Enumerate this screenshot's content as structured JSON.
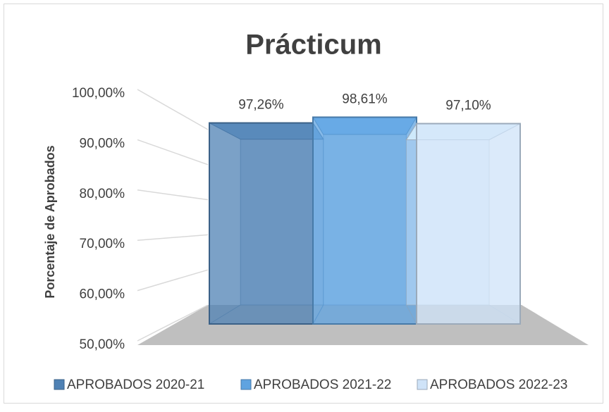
{
  "chart_data": {
    "type": "bar",
    "title": "Prácticum",
    "y_label": "Porcentaje de Aprobados",
    "ylim": [
      50,
      100
    ],
    "yticks": [
      {
        "value": 50,
        "label": "50,00%"
      },
      {
        "value": 60,
        "label": "60,00%"
      },
      {
        "value": 70,
        "label": "70,00%"
      },
      {
        "value": 80,
        "label": "80,00%"
      },
      {
        "value": 90,
        "label": "90,00%"
      },
      {
        "value": 100,
        "label": "100,00%"
      }
    ],
    "grid": true,
    "legend": "bottom",
    "series": [
      {
        "name": "APROBADOS 2020-21",
        "color": "#4f81b4",
        "values": [
          97.26
        ],
        "value_labels": [
          "97,26%"
        ]
      },
      {
        "name": "APROBADOS 2021-22",
        "color": "#5fa3e0",
        "values": [
          98.61
        ],
        "value_labels": [
          "98,61%"
        ]
      },
      {
        "name": "APROBADOS 2022-23",
        "color": "#cfe3f8",
        "values": [
          97.1
        ],
        "value_labels": [
          "97,10%"
        ]
      }
    ]
  }
}
